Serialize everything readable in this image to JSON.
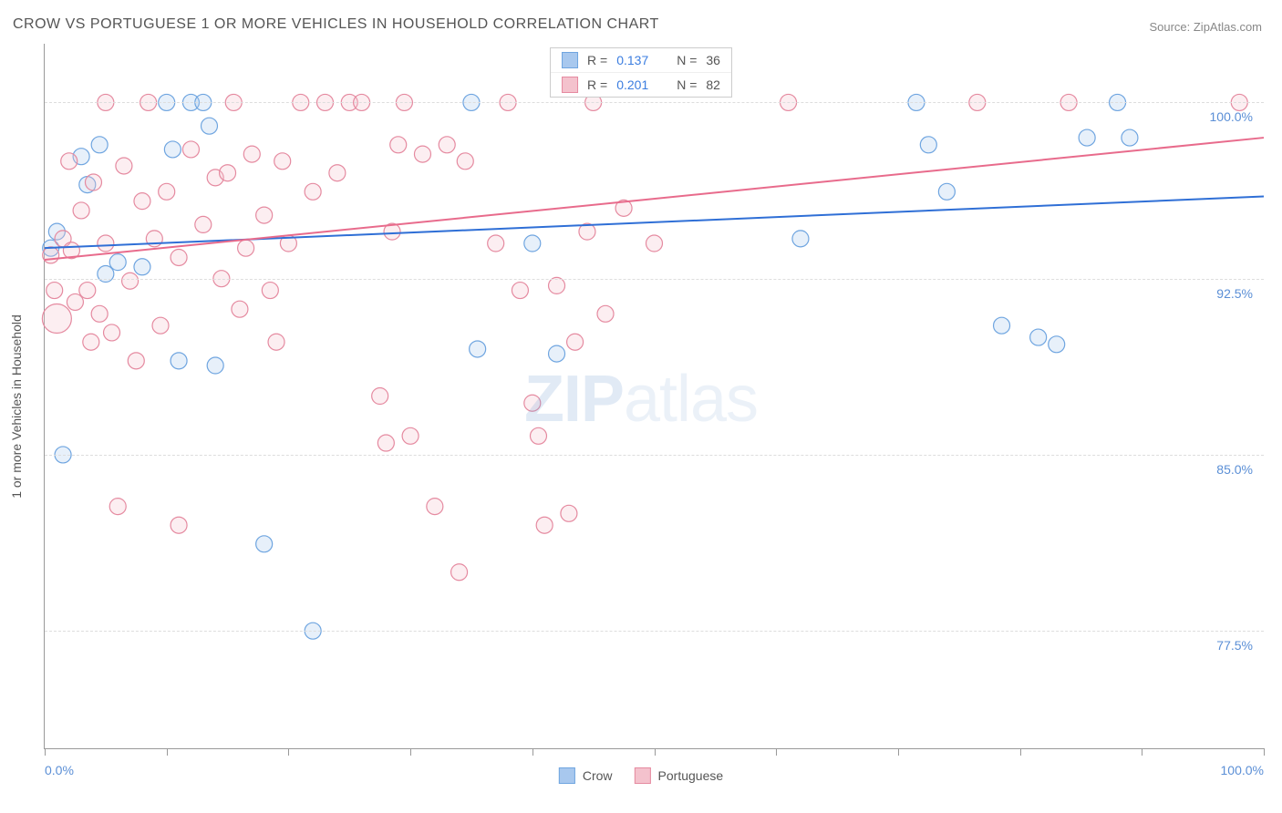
{
  "title": "CROW VS PORTUGUESE 1 OR MORE VEHICLES IN HOUSEHOLD CORRELATION CHART",
  "source": "Source: ZipAtlas.com",
  "ylabel": "1 or more Vehicles in Household",
  "watermark_bold": "ZIP",
  "watermark_light": "atlas",
  "chart": {
    "type": "scatter",
    "xlim": [
      0,
      100
    ],
    "ylim": [
      72.5,
      102.5
    ],
    "x_tick_positions": [
      0,
      10,
      20,
      30,
      40,
      50,
      60,
      70,
      80,
      90,
      100
    ],
    "y_gridlines": [
      77.5,
      85.0,
      92.5,
      100.0
    ],
    "y_tick_labels": [
      "77.5%",
      "85.0%",
      "92.5%",
      "100.0%"
    ],
    "x_min_label": "0.0%",
    "x_max_label": "100.0%",
    "background_color": "#ffffff",
    "grid_color": "#dddddd",
    "axis_color": "#999999",
    "tick_label_color": "#5b8fd6",
    "marker_radius": 9,
    "marker_radius_large": 16,
    "marker_fill_opacity": 0.28,
    "marker_stroke_width": 1.2,
    "line_width": 2
  },
  "series": [
    {
      "name": "Crow",
      "color_fill": "#a8c8ee",
      "color_stroke": "#6fa5e0",
      "line_color": "#2f6fd6",
      "r_value": "0.137",
      "n_value": "36",
      "trend": {
        "x1": 0,
        "y1": 93.8,
        "x2": 100,
        "y2": 96.0
      },
      "points": [
        {
          "x": 0.5,
          "y": 93.8
        },
        {
          "x": 1.0,
          "y": 94.5
        },
        {
          "x": 1.5,
          "y": 85.0
        },
        {
          "x": 3.0,
          "y": 97.7
        },
        {
          "x": 3.5,
          "y": 96.5
        },
        {
          "x": 4.5,
          "y": 98.2
        },
        {
          "x": 5.0,
          "y": 92.7
        },
        {
          "x": 6.0,
          "y": 93.2
        },
        {
          "x": 8.0,
          "y": 93.0
        },
        {
          "x": 10.0,
          "y": 100.0
        },
        {
          "x": 10.5,
          "y": 98.0
        },
        {
          "x": 11.0,
          "y": 89.0
        },
        {
          "x": 12.0,
          "y": 100.0
        },
        {
          "x": 13.0,
          "y": 100.0
        },
        {
          "x": 13.5,
          "y": 99.0
        },
        {
          "x": 14.0,
          "y": 88.8
        },
        {
          "x": 18.0,
          "y": 81.2
        },
        {
          "x": 22.0,
          "y": 77.5
        },
        {
          "x": 35.0,
          "y": 100.0
        },
        {
          "x": 35.5,
          "y": 89.5
        },
        {
          "x": 40.0,
          "y": 94.0
        },
        {
          "x": 42.0,
          "y": 89.3
        },
        {
          "x": 62.0,
          "y": 94.2
        },
        {
          "x": 71.5,
          "y": 100.0
        },
        {
          "x": 72.5,
          "y": 98.2
        },
        {
          "x": 74.0,
          "y": 96.2
        },
        {
          "x": 78.5,
          "y": 90.5
        },
        {
          "x": 81.5,
          "y": 90.0
        },
        {
          "x": 83.0,
          "y": 89.7
        },
        {
          "x": 85.5,
          "y": 98.5
        },
        {
          "x": 88.0,
          "y": 100.0
        },
        {
          "x": 89.0,
          "y": 98.5
        }
      ]
    },
    {
      "name": "Portuguese",
      "color_fill": "#f4c2cd",
      "color_stroke": "#e58aa0",
      "line_color": "#e86b8c",
      "r_value": "0.201",
      "n_value": "82",
      "trend": {
        "x1": 0,
        "y1": 93.3,
        "x2": 100,
        "y2": 98.5
      },
      "points": [
        {
          "x": 0.5,
          "y": 93.5
        },
        {
          "x": 0.8,
          "y": 92.0
        },
        {
          "x": 1.0,
          "y": 90.8,
          "r": 16
        },
        {
          "x": 1.5,
          "y": 94.2
        },
        {
          "x": 2.0,
          "y": 97.5
        },
        {
          "x": 2.2,
          "y": 93.7
        },
        {
          "x": 2.5,
          "y": 91.5
        },
        {
          "x": 3.0,
          "y": 95.4
        },
        {
          "x": 3.5,
          "y": 92.0
        },
        {
          "x": 3.8,
          "y": 89.8
        },
        {
          "x": 4.0,
          "y": 96.6
        },
        {
          "x": 4.5,
          "y": 91.0
        },
        {
          "x": 5.0,
          "y": 94.0
        },
        {
          "x": 5.0,
          "y": 100.0
        },
        {
          "x": 5.5,
          "y": 90.2
        },
        {
          "x": 6.0,
          "y": 82.8
        },
        {
          "x": 6.5,
          "y": 97.3
        },
        {
          "x": 7.0,
          "y": 92.4
        },
        {
          "x": 7.5,
          "y": 89.0
        },
        {
          "x": 8.0,
          "y": 95.8
        },
        {
          "x": 8.5,
          "y": 100.0
        },
        {
          "x": 9.0,
          "y": 94.2
        },
        {
          "x": 9.5,
          "y": 90.5
        },
        {
          "x": 10.0,
          "y": 96.2
        },
        {
          "x": 11.0,
          "y": 93.4
        },
        {
          "x": 11.0,
          "y": 82.0
        },
        {
          "x": 12.0,
          "y": 98.0
        },
        {
          "x": 13.0,
          "y": 94.8
        },
        {
          "x": 14.0,
          "y": 96.8
        },
        {
          "x": 14.5,
          "y": 92.5
        },
        {
          "x": 15.0,
          "y": 97.0
        },
        {
          "x": 15.5,
          "y": 100.0
        },
        {
          "x": 16.0,
          "y": 91.2
        },
        {
          "x": 16.5,
          "y": 93.8
        },
        {
          "x": 17.0,
          "y": 97.8
        },
        {
          "x": 18.0,
          "y": 95.2
        },
        {
          "x": 18.5,
          "y": 92.0
        },
        {
          "x": 19.0,
          "y": 89.8
        },
        {
          "x": 19.5,
          "y": 97.5
        },
        {
          "x": 20.0,
          "y": 94.0
        },
        {
          "x": 21.0,
          "y": 100.0
        },
        {
          "x": 22.0,
          "y": 96.2
        },
        {
          "x": 23.0,
          "y": 100.0
        },
        {
          "x": 24.0,
          "y": 97.0
        },
        {
          "x": 25.0,
          "y": 100.0
        },
        {
          "x": 26.0,
          "y": 100.0
        },
        {
          "x": 27.5,
          "y": 87.5
        },
        {
          "x": 28.0,
          "y": 85.5
        },
        {
          "x": 28.5,
          "y": 94.5
        },
        {
          "x": 29.0,
          "y": 98.2
        },
        {
          "x": 29.5,
          "y": 100.0
        },
        {
          "x": 30.0,
          "y": 85.8
        },
        {
          "x": 31.0,
          "y": 97.8
        },
        {
          "x": 32.0,
          "y": 82.8
        },
        {
          "x": 33.0,
          "y": 98.2
        },
        {
          "x": 34.0,
          "y": 80.0
        },
        {
          "x": 34.5,
          "y": 97.5
        },
        {
          "x": 37.0,
          "y": 94.0
        },
        {
          "x": 38.0,
          "y": 100.0
        },
        {
          "x": 39.0,
          "y": 92.0
        },
        {
          "x": 40.0,
          "y": 87.2
        },
        {
          "x": 40.5,
          "y": 85.8
        },
        {
          "x": 41.0,
          "y": 82.0
        },
        {
          "x": 42.0,
          "y": 92.2
        },
        {
          "x": 43.0,
          "y": 82.5
        },
        {
          "x": 43.5,
          "y": 89.8
        },
        {
          "x": 44.5,
          "y": 94.5
        },
        {
          "x": 45.0,
          "y": 100.0
        },
        {
          "x": 46.0,
          "y": 91.0
        },
        {
          "x": 47.5,
          "y": 95.5
        },
        {
          "x": 50.0,
          "y": 94.0
        },
        {
          "x": 61.0,
          "y": 100.0
        },
        {
          "x": 76.5,
          "y": 100.0
        },
        {
          "x": 84.0,
          "y": 100.0
        },
        {
          "x": 98.0,
          "y": 100.0
        }
      ]
    }
  ],
  "legend_bottom": [
    {
      "label": "Crow",
      "fill": "#a8c8ee",
      "stroke": "#6fa5e0"
    },
    {
      "label": "Portuguese",
      "fill": "#f4c2cd",
      "stroke": "#e58aa0"
    }
  ],
  "legend_top_labels": {
    "r": "R  =",
    "n": "N  ="
  }
}
